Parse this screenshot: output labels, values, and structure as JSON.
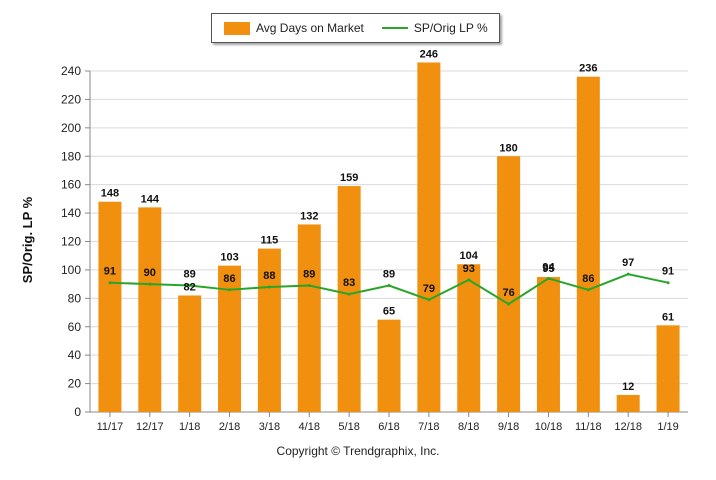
{
  "chart_data": {
    "type": "bar",
    "categories": [
      "11/17",
      "12/17",
      "1/18",
      "2/18",
      "3/18",
      "4/18",
      "5/18",
      "6/18",
      "7/18",
      "8/18",
      "9/18",
      "10/18",
      "11/18",
      "12/18",
      "1/19"
    ],
    "series": [
      {
        "name": "Avg Days on Market",
        "type": "bar",
        "color": "#f0900e",
        "values": [
          148,
          144,
          82,
          103,
          115,
          132,
          159,
          65,
          246,
          104,
          180,
          95,
          236,
          12,
          61
        ]
      },
      {
        "name": "SP/Orig LP %",
        "type": "line",
        "color": "#2aa52a",
        "values": [
          91,
          90,
          89,
          86,
          88,
          89,
          83,
          89,
          79,
          93,
          76,
          94,
          86,
          97,
          91
        ]
      }
    ],
    "ylabel": "SP/Orig. LP %",
    "ylim": [
      0,
      240
    ],
    "yticks": [
      0,
      20,
      40,
      60,
      80,
      100,
      120,
      140,
      160,
      180,
      200,
      220,
      240
    ],
    "grid": true,
    "legend_position": "top"
  },
  "footer": {
    "copyright": "Copyright © Trendgraphix, Inc."
  }
}
